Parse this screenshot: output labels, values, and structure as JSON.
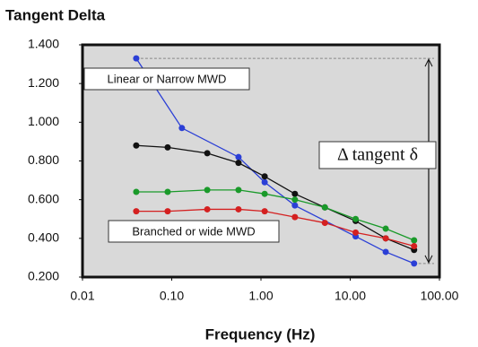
{
  "chart_data": {
    "type": "line",
    "title": "Tangent Delta",
    "x_label": "Frequency (Hz)",
    "log_x": true,
    "background": "#d9d9d9",
    "xlim": [
      0.01,
      100
    ],
    "ylim": [
      0.2,
      1.4
    ],
    "xticks": [
      {
        "value": 0.01,
        "label": "0.01"
      },
      {
        "value": 0.1,
        "label": "0.10"
      },
      {
        "value": 1,
        "label": "1.00"
      },
      {
        "value": 10,
        "label": "10.00"
      },
      {
        "value": 100,
        "label": "100.00"
      }
    ],
    "yticks": [
      {
        "value": 0.2,
        "label": "0.200"
      },
      {
        "value": 0.4,
        "label": "0.400"
      },
      {
        "value": 0.6,
        "label": "0.600"
      },
      {
        "value": 0.8,
        "label": "0.800"
      },
      {
        "value": 1.0,
        "label": "1.000"
      },
      {
        "value": 1.2,
        "label": "1.200"
      },
      {
        "value": 1.4,
        "label": "1.400"
      }
    ],
    "series": [
      {
        "color": "#2b3fd6",
        "x": [
          0.04,
          0.13,
          0.56,
          1.1,
          2.4,
          11.5,
          25,
          52
        ],
        "values": [
          1.33,
          0.97,
          0.82,
          0.69,
          0.57,
          0.41,
          0.33,
          0.27
        ]
      },
      {
        "color": "#111111",
        "x": [
          0.04,
          0.09,
          0.25,
          0.56,
          1.1,
          2.4,
          5.2,
          11.5,
          25,
          52
        ],
        "values": [
          0.88,
          0.87,
          0.84,
          0.79,
          0.72,
          0.63,
          0.56,
          0.49,
          0.4,
          0.34
        ]
      },
      {
        "color": "#1a9a2a",
        "x": [
          0.04,
          0.09,
          0.25,
          0.56,
          1.1,
          2.4,
          5.2,
          11.5,
          25,
          52
        ],
        "values": [
          0.64,
          0.64,
          0.65,
          0.65,
          0.63,
          0.6,
          0.56,
          0.5,
          0.45,
          0.39
        ]
      },
      {
        "color": "#d42020",
        "x": [
          0.04,
          0.09,
          0.25,
          0.56,
          1.1,
          2.4,
          5.2,
          11.5,
          25,
          52
        ],
        "values": [
          0.54,
          0.54,
          0.55,
          0.55,
          0.54,
          0.51,
          0.48,
          0.43,
          0.4,
          0.36
        ]
      }
    ],
    "annotations": [
      "Linear or Narrow MWD",
      "Branched or wide MWD",
      "Δ tangent δ"
    ]
  }
}
